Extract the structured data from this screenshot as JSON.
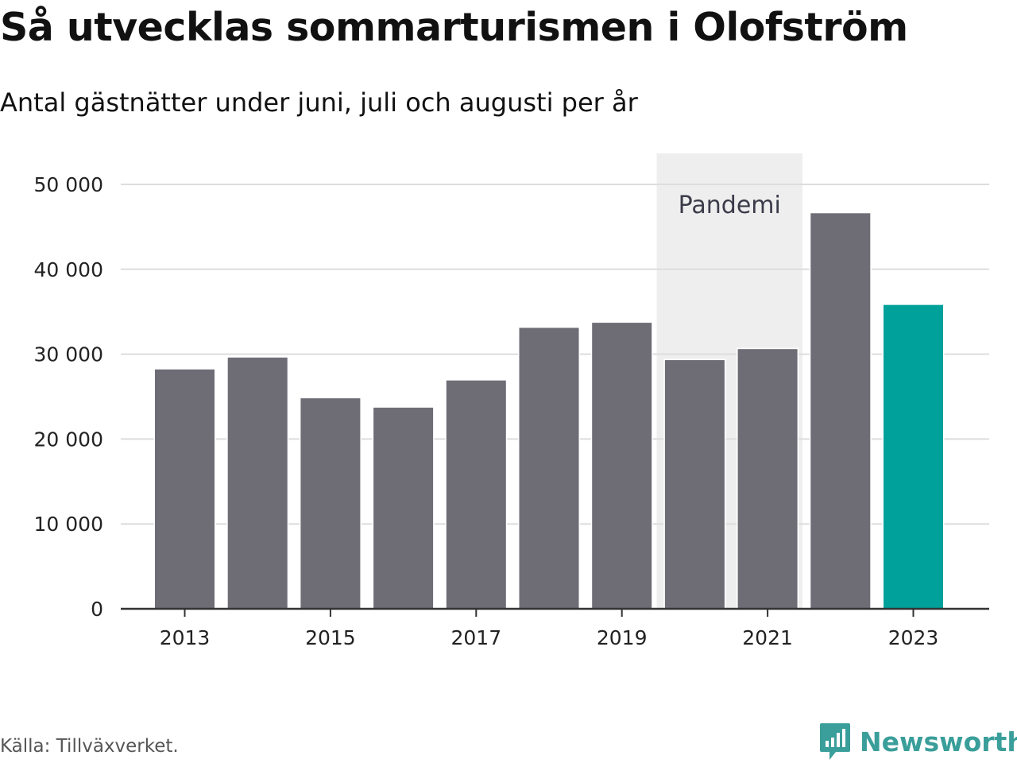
{
  "header": {
    "title": "Så utvecklas sommarturismen i Olofström",
    "subtitle": "Antal gästnätter under juni, juli och augusti per år"
  },
  "footer": {
    "source": "Källa: Tillväxverket.",
    "brand": "Newsworthy",
    "brand_icon": "newsworthy-logo-icon"
  },
  "colors": {
    "bar": "#6e6d76",
    "highlight": "#00a19a",
    "grid": "#dddddd",
    "annotation_band": "#eeeeee",
    "axis": "#333333",
    "brand": "#3a9e9a"
  },
  "chart_data": {
    "type": "bar",
    "categories": [
      "2013",
      "2014",
      "2015",
      "2016",
      "2017",
      "2018",
      "2019",
      "2020",
      "2021",
      "2022",
      "2023"
    ],
    "values": [
      28200,
      29600,
      24800,
      23700,
      26900,
      33100,
      33700,
      29300,
      30600,
      46600,
      35800
    ],
    "highlight_category": "2023",
    "x_tick_labels": [
      "2013",
      "2015",
      "2017",
      "2019",
      "2021",
      "2023"
    ],
    "y_tick_values": [
      0,
      10000,
      20000,
      30000,
      40000,
      50000
    ],
    "y_tick_labels": [
      "0",
      "10 000",
      "20 000",
      "30 000",
      "40 000",
      "50 000"
    ],
    "ylim": [
      0,
      50000
    ],
    "grid": true,
    "annotation": {
      "label": "Pandemi",
      "from_category": "2020",
      "to_category": "2021"
    }
  }
}
